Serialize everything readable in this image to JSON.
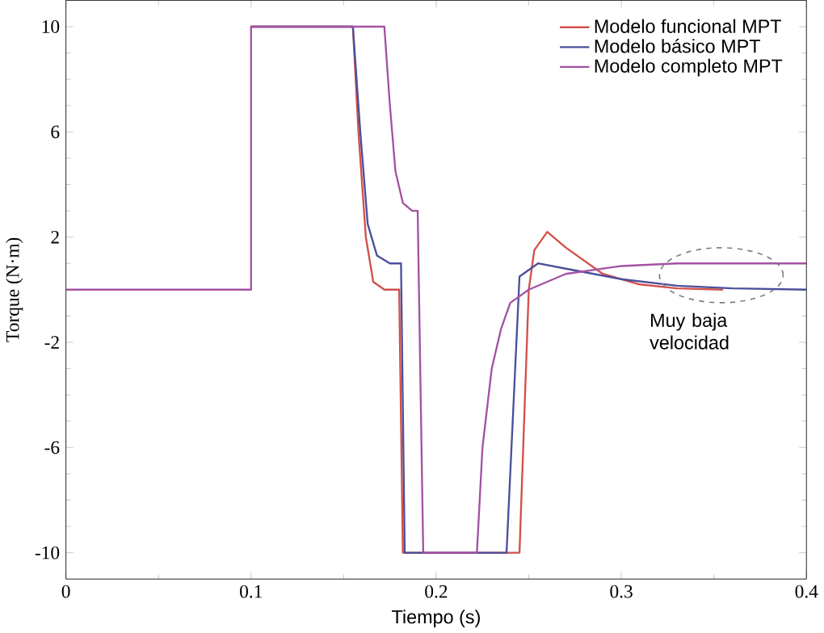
{
  "chart_data": {
    "type": "line",
    "xlabel": "Tiempo (s)",
    "ylabel": "Torque (N·m)",
    "xlim": [
      0,
      0.4
    ],
    "xticks": [
      0,
      0.1,
      0.2,
      0.3,
      0.4
    ],
    "ylim": [
      -11,
      11
    ],
    "yticks": [
      10,
      6,
      2,
      -2,
      -6,
      -10
    ],
    "legend": "top right",
    "grid": false,
    "line_style": "solid",
    "marker": "none",
    "annotations": [
      "Muy baja velocidad"
    ],
    "series": [
      {
        "name": "Modelo funcional MPT",
        "color": "#d2504a",
        "x": [
          0.1,
          0.155,
          0.158,
          0.162,
          0.166,
          0.172,
          0.18,
          0.182,
          0.245,
          0.25,
          0.253,
          0.26,
          0.27,
          0.29,
          0.31,
          0.33,
          0.355
        ],
        "values": [
          10,
          10,
          6,
          2,
          0.3,
          0,
          0,
          -10,
          -10,
          0,
          1.5,
          2.2,
          1.6,
          0.6,
          0.2,
          0.05,
          0
        ]
      },
      {
        "name": "Modelo básico MPT",
        "color": "#4a4f9a",
        "x": [
          0.1,
          0.155,
          0.159,
          0.163,
          0.168,
          0.175,
          0.181,
          0.183,
          0.238,
          0.245,
          0.255,
          0.27,
          0.3,
          0.33,
          0.36,
          0.4
        ],
        "values": [
          10,
          10,
          6,
          2.5,
          1.3,
          1,
          1,
          -10,
          -10,
          0.5,
          1,
          0.8,
          0.4,
          0.15,
          0.05,
          0
        ]
      },
      {
        "name": "Modelo completo MPT",
        "color": "#a352a3",
        "x": [
          0,
          0.1,
          0.1,
          0.172,
          0.175,
          0.178,
          0.182,
          0.187,
          0.19,
          0.193,
          0.222,
          0.225,
          0.23,
          0.235,
          0.24,
          0.25,
          0.27,
          0.3,
          0.33,
          0.4
        ],
        "values": [
          0,
          0,
          10,
          10,
          7,
          4.5,
          3.3,
          3,
          3,
          -10,
          -10,
          -6,
          -3,
          -1.5,
          -0.5,
          0,
          0.6,
          0.9,
          1,
          1
        ]
      }
    ]
  }
}
